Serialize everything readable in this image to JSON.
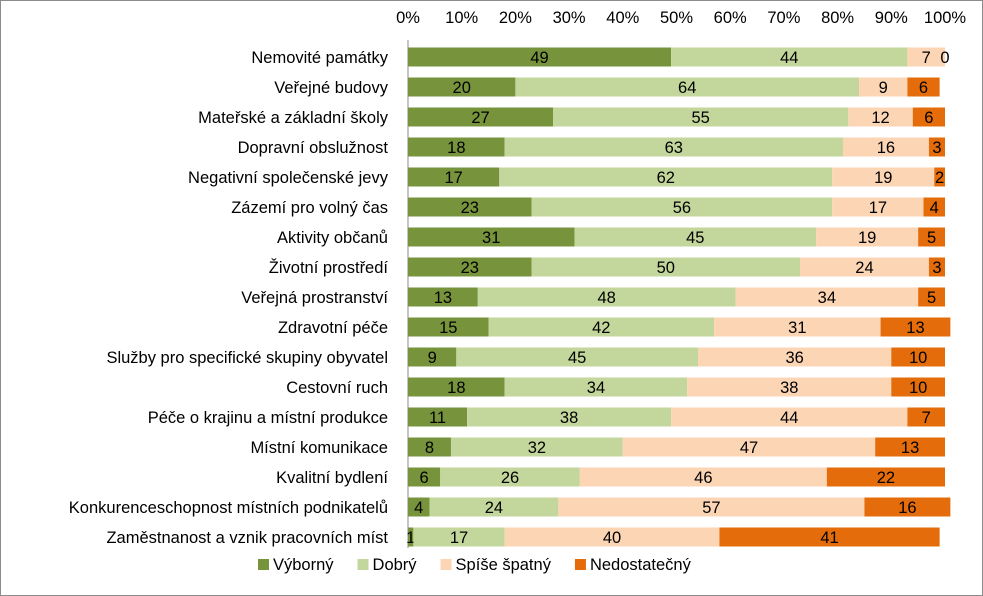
{
  "chart_data": {
    "type": "bar",
    "orientation": "horizontal",
    "stacked": true,
    "xlim": [
      0,
      100
    ],
    "xticks": [
      "0%",
      "10%",
      "20%",
      "30%",
      "40%",
      "50%",
      "60%",
      "70%",
      "80%",
      "90%",
      "100%"
    ],
    "categories": [
      "Nemovité památky",
      "Veřejné budovy",
      "Mateřské a základní školy",
      "Dopravní obslužnost",
      "Negativní společenské jevy",
      "Zázemí pro volný čas",
      "Aktivity občanů",
      "Životní prostředí",
      "Veřejná prostranství",
      "Zdravotní péče",
      "Služby pro specifické skupiny obyvatel",
      "Cestovní ruch",
      "Péče o krajinu a místní produkce",
      "Místní komunikace",
      "Kvalitní bydlení",
      "Konkurenceschopnost místních podnikatelů",
      "Zaměstnanost a vznik pracovních míst"
    ],
    "series": [
      {
        "name": "Výborný",
        "color": "#77933c",
        "values": [
          49,
          20,
          27,
          18,
          17,
          23,
          31,
          23,
          13,
          15,
          9,
          18,
          11,
          8,
          6,
          4,
          1
        ]
      },
      {
        "name": "Dobrý",
        "color": "#c3d69b",
        "values": [
          44,
          64,
          55,
          63,
          62,
          56,
          45,
          50,
          48,
          42,
          45,
          34,
          38,
          32,
          26,
          24,
          17
        ]
      },
      {
        "name": "Spíše špatný",
        "color": "#fcd5b5",
        "values": [
          7,
          9,
          12,
          16,
          19,
          17,
          19,
          24,
          34,
          31,
          36,
          38,
          44,
          47,
          46,
          57,
          40
        ]
      },
      {
        "name": "Nedostatečný",
        "color": "#e46c0a",
        "values": [
          0,
          6,
          6,
          3,
          2,
          4,
          5,
          3,
          5,
          13,
          10,
          10,
          7,
          13,
          22,
          16,
          41
        ]
      }
    ],
    "legend_position": "bottom"
  }
}
